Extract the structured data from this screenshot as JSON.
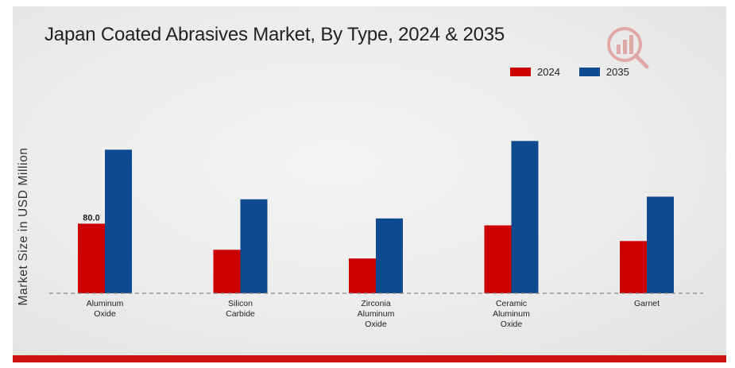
{
  "chart_data": {
    "type": "bar",
    "title": "Japan Coated Abrasives Market, By Type, 2024 & 2035",
    "ylabel": "Market Size in USD Million",
    "xlabel": "",
    "categories": [
      [
        "Aluminum",
        "Oxide"
      ],
      [
        "Silicon",
        "Carbide"
      ],
      [
        "Zirconia",
        "Aluminum",
        "Oxide"
      ],
      [
        "Ceramic",
        "Aluminum",
        "Oxide"
      ],
      [
        "Garnet"
      ]
    ],
    "series": [
      {
        "name": "2024",
        "color": "#cc0000",
        "values": [
          80.0,
          50.0,
          40.0,
          78.0,
          60.0
        ]
      },
      {
        "name": "2035",
        "color": "#0d4a8f",
        "values": [
          165.0,
          108.0,
          86.0,
          175.0,
          111.0
        ]
      }
    ],
    "data_labels": [
      {
        "series": 0,
        "index": 0,
        "text": "80.0"
      }
    ],
    "ylim": [
      0,
      200
    ],
    "grid": false,
    "legend_position": "top-right"
  },
  "logo": {
    "icon": "brand-logo-icon",
    "color": "#d23030"
  }
}
